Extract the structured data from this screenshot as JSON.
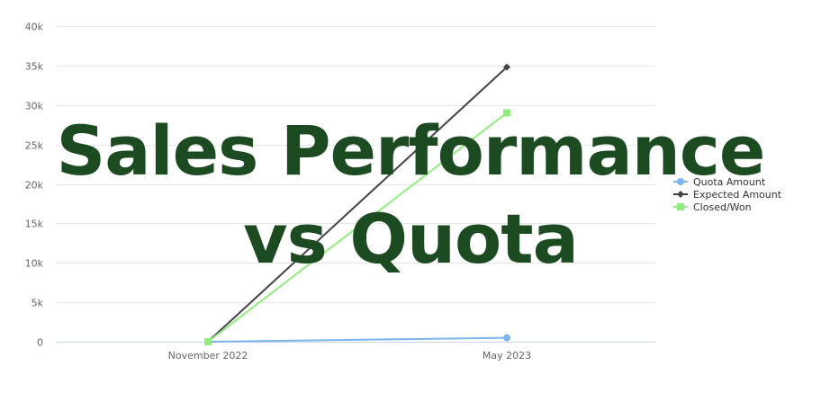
{
  "chart_data": {
    "type": "line",
    "title": "Sales Performance vs Quota",
    "title_lines": [
      "Sales Performance",
      "vs Quota"
    ],
    "title_color": "#1c4b22",
    "categories": [
      "November 2022",
      "May 2023"
    ],
    "ylim": [
      0,
      40000
    ],
    "yticks": [
      {
        "value": 0,
        "label": "0"
      },
      {
        "value": 5000,
        "label": "5k"
      },
      {
        "value": 10000,
        "label": "10k"
      },
      {
        "value": 15000,
        "label": "15k"
      },
      {
        "value": 20000,
        "label": "20k"
      },
      {
        "value": 25000,
        "label": "25k"
      },
      {
        "value": 30000,
        "label": "30k"
      },
      {
        "value": 35000,
        "label": "35k"
      },
      {
        "value": 40000,
        "label": "40k"
      }
    ],
    "grid": true,
    "legend_position": "right",
    "series": [
      {
        "name": "Quota Amount",
        "values": [
          0,
          500
        ],
        "color": "#7cb5ec",
        "marker": "circle"
      },
      {
        "name": "Expected Amount",
        "values": [
          0,
          34800
        ],
        "color": "#434348",
        "marker": "diamond"
      },
      {
        "name": "Closed/Won",
        "values": [
          0,
          29000
        ],
        "color": "#90ed7d",
        "marker": "square"
      }
    ]
  }
}
